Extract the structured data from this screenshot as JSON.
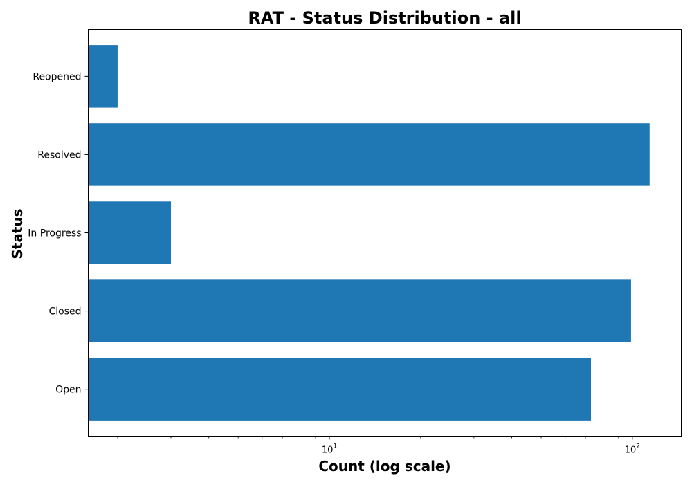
{
  "chart_data": {
    "type": "bar",
    "orientation": "horizontal",
    "title": "RAT - Status Distribution - all",
    "xlabel": "Count (log scale)",
    "ylabel": "Status",
    "x_scale": "log",
    "xlim": [
      1.6,
      145
    ],
    "x_ticks": [
      {
        "value": 10,
        "base": "10",
        "exponent": "1"
      },
      {
        "value": 100,
        "base": "10",
        "exponent": "2"
      }
    ],
    "categories": [
      "Open",
      "Closed",
      "In Progress",
      "Resolved",
      "Reopened"
    ],
    "values": [
      73,
      99,
      3,
      114,
      2
    ],
    "grid": false,
    "legend": "none",
    "colors": {
      "bar": "#1f77b4",
      "axes": "#000000",
      "background": "#ffffff"
    }
  }
}
